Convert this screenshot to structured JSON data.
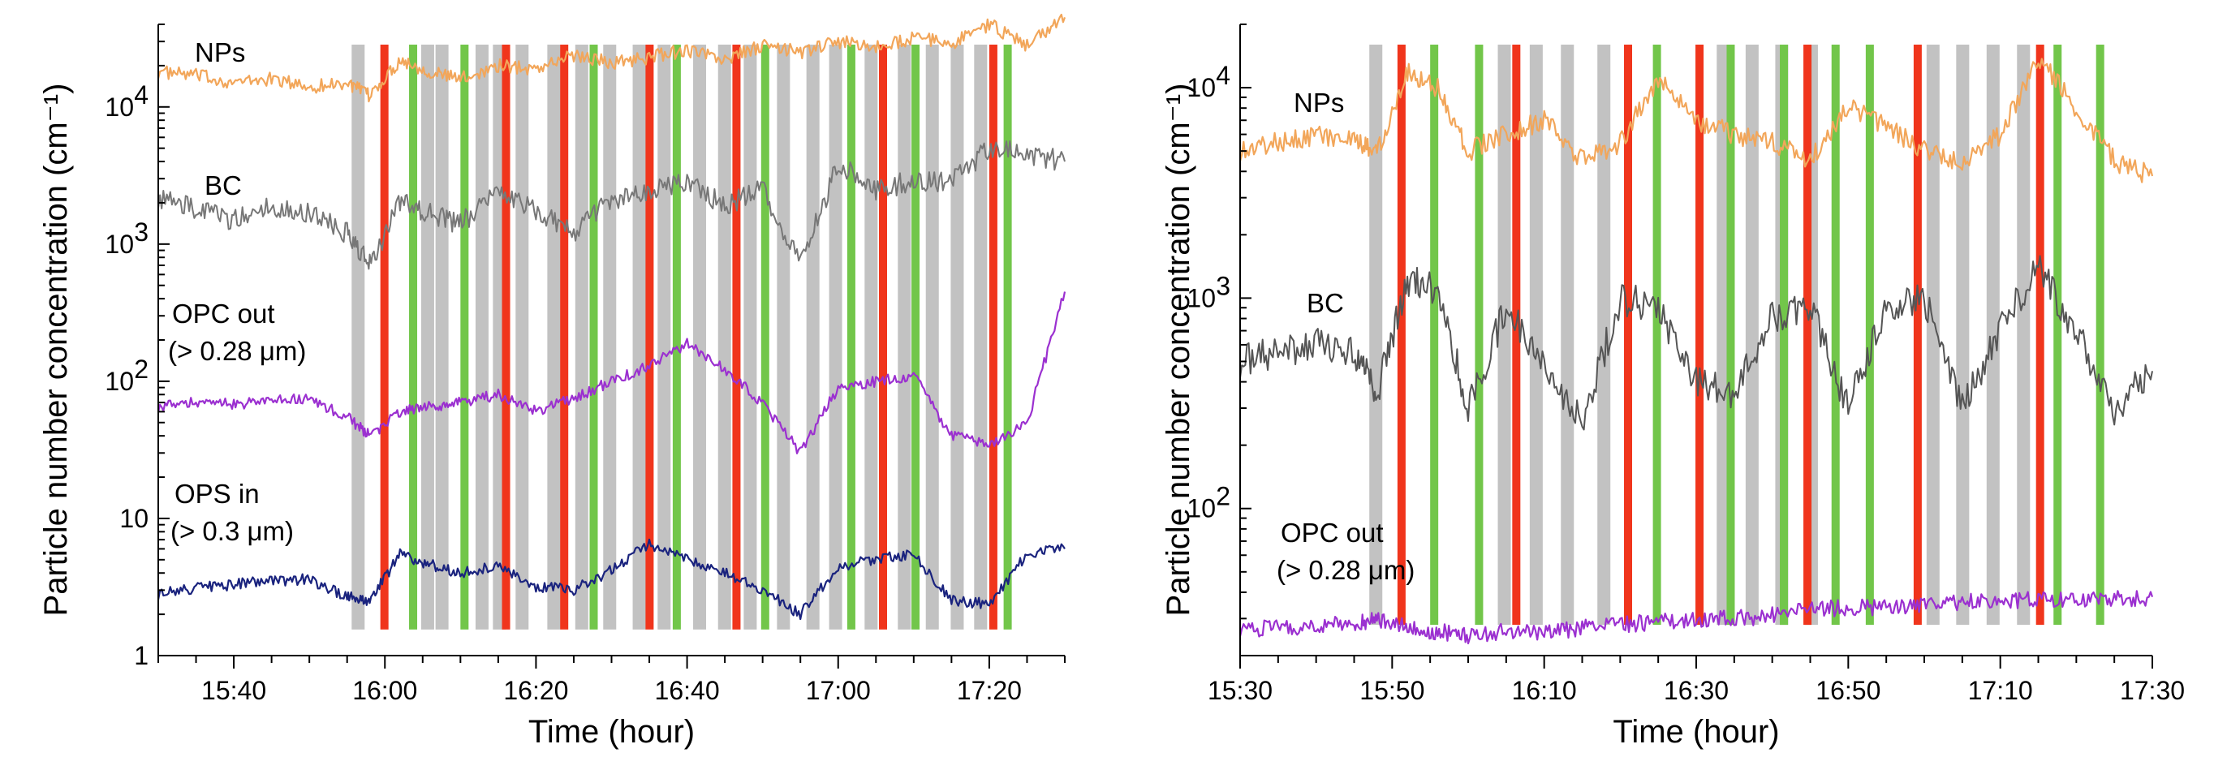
{
  "chart_data": [
    {
      "type": "line",
      "panel": "left",
      "y_scale": "log",
      "ylabel": "Particle number concentration (cm⁻¹)",
      "xlabel": "Time (hour)",
      "xlim_min": [
        930,
        1050
      ],
      "ylim": [
        1,
        40000
      ],
      "x_ticks": [
        {
          "label": "15:40",
          "min": 940
        },
        {
          "label": "16:00",
          "min": 960
        },
        {
          "label": "16:20",
          "min": 980
        },
        {
          "label": "16:40",
          "min": 1000
        },
        {
          "label": "17:00",
          "min": 1020
        },
        {
          "label": "17:20",
          "min": 1040
        }
      ],
      "y_ticks": [
        {
          "label": "1",
          "exp": "",
          "v": 1
        },
        {
          "label": "10",
          "exp": "",
          "v": 10
        },
        {
          "label": "10",
          "exp": "2",
          "v": 100
        },
        {
          "label": "10",
          "exp": "3",
          "v": 1000
        },
        {
          "label": "10",
          "exp": "4",
          "v": 10000
        }
      ],
      "gray_bands_min": [
        955.6,
        964.8,
        966.7,
        972.0,
        974.3,
        977.3,
        981.5,
        985.2,
        988.9,
        992.8,
        996.1,
        1000.8,
        1004.1,
        1007.5,
        1011.9,
        1015.8,
        1018.8,
        1023.5,
        1027.9,
        1031.6,
        1034.9,
        1038.0
      ],
      "red_bars_min": [
        959.4,
        975.5,
        983.2,
        994.5,
        1006.0,
        1025.4,
        1040.0
      ],
      "green_bars_min": [
        963.2,
        970.0,
        987.1,
        998.1,
        1009.8,
        1021.2,
        1029.7,
        1041.9
      ],
      "series": [
        {
          "name": "NPs",
          "label": "NPs",
          "color": "#f2a65a",
          "x_min": [
            930,
            935,
            940,
            945,
            950,
            955,
            958,
            962,
            966,
            970,
            975,
            980,
            985,
            990,
            995,
            1000,
            1005,
            1010,
            1015,
            1020,
            1025,
            1030,
            1035,
            1040,
            1045,
            1050
          ],
          "values": [
            18000,
            17000,
            15000,
            16000,
            14000,
            15000,
            12000,
            22000,
            18000,
            16000,
            20000,
            19000,
            24000,
            21000,
            23000,
            26000,
            22000,
            28000,
            25000,
            30000,
            27000,
            32000,
            29000,
            40000,
            28000,
            45000
          ]
        },
        {
          "name": "BC",
          "label": "BC",
          "color": "#777777",
          "x_min": [
            930,
            935,
            940,
            945,
            950,
            955,
            958,
            962,
            966,
            970,
            975,
            980,
            985,
            990,
            995,
            1000,
            1005,
            1010,
            1015,
            1020,
            1025,
            1030,
            1035,
            1040,
            1045,
            1050
          ],
          "values": [
            2200,
            1800,
            1500,
            1900,
            1700,
            1200,
            700,
            2000,
            1700,
            1400,
            2500,
            1800,
            1200,
            2100,
            2500,
            2800,
            1900,
            2600,
            700,
            3800,
            2500,
            2900,
            2800,
            5000,
            4500,
            4000
          ]
        },
        {
          "name": "OPC out (> 0.28 μm)",
          "label_line1": "OPC out",
          "label_line2": "(> 0.28 μm)",
          "color": "#9b30d0",
          "x_min": [
            930,
            935,
            940,
            945,
            950,
            955,
            958,
            962,
            966,
            970,
            975,
            980,
            985,
            990,
            995,
            1000,
            1005,
            1010,
            1015,
            1020,
            1025,
            1030,
            1035,
            1040,
            1045,
            1050
          ],
          "values": [
            65,
            70,
            68,
            72,
            75,
            55,
            40,
            60,
            65,
            70,
            80,
            60,
            75,
            100,
            130,
            190,
            120,
            70,
            30,
            90,
            100,
            110,
            40,
            35,
            50,
            450
          ]
        },
        {
          "name": "OPS in (> 0.3 μm)",
          "label_line1": "OPS in",
          "label_line2": "(> 0.3 μm)",
          "color": "#1a237e",
          "x_min": [
            930,
            935,
            940,
            945,
            950,
            955,
            958,
            962,
            966,
            970,
            975,
            980,
            985,
            990,
            995,
            1000,
            1005,
            1010,
            1015,
            1020,
            1025,
            1030,
            1035,
            1040,
            1045,
            1050
          ],
          "values": [
            2.8,
            3.1,
            3.3,
            3.5,
            3.6,
            2.7,
            2.5,
            5.5,
            4.6,
            4.0,
            4.5,
            3.2,
            3.0,
            4.2,
            6.5,
            5.0,
            4.0,
            3.0,
            2.0,
            4.5,
            5.0,
            5.5,
            2.5,
            2.4,
            5.5,
            6.0
          ]
        }
      ]
    },
    {
      "type": "line",
      "panel": "right",
      "y_scale": "log",
      "ylabel": "Particle number concentration (cm⁻¹)",
      "xlabel": "Time (hour)",
      "xlim_min": [
        930,
        1050
      ],
      "ylim": [
        20,
        20000
      ],
      "x_ticks": [
        {
          "label": "15:30",
          "min": 930
        },
        {
          "label": "15:50",
          "min": 950
        },
        {
          "label": "16:10",
          "min": 970
        },
        {
          "label": "16:30",
          "min": 990
        },
        {
          "label": "16:50",
          "min": 1010
        },
        {
          "label": "17:10",
          "min": 1030
        },
        {
          "label": "17:30",
          "min": 1050
        }
      ],
      "y_ticks": [
        {
          "label": "10",
          "exp": "2",
          "v": 100
        },
        {
          "label": "10",
          "exp": "3",
          "v": 1000
        },
        {
          "label": "10",
          "exp": "4",
          "v": 10000
        }
      ],
      "gray_bands_min": [
        947.0,
        963.9,
        968.1,
        972.2,
        977.0,
        992.7,
        996.5,
        1000.4,
        1004.3,
        1020.3,
        1024.2,
        1028.2,
        1032.2
      ],
      "red_bars_min": [
        950.7,
        965.8,
        980.5,
        989.9,
        1004.1,
        1018.6,
        1034.7
      ],
      "green_bars_min": [
        955.0,
        960.9,
        984.3,
        994.0,
        1001.0,
        1007.8,
        1012.3,
        1037.0,
        1042.6
      ],
      "series": [
        {
          "name": "NPs",
          "label": "NPs",
          "color": "#f2a65a",
          "x_min": [
            930,
            935,
            940,
            945,
            948,
            952,
            956,
            960,
            965,
            970,
            975,
            980,
            985,
            990,
            995,
            1000,
            1005,
            1010,
            1015,
            1020,
            1025,
            1030,
            1035,
            1040,
            1045,
            1050
          ],
          "values": [
            5000,
            5500,
            6000,
            5500,
            5000,
            12000,
            10000,
            5000,
            6000,
            7000,
            4500,
            5500,
            11000,
            7000,
            6000,
            5500,
            4500,
            8000,
            6500,
            5000,
            4500,
            6000,
            14000,
            8000,
            4500,
            3800
          ]
        },
        {
          "name": "BC",
          "label": "BC",
          "color": "#555555",
          "x_min": [
            930,
            935,
            940,
            945,
            948,
            952,
            956,
            960,
            965,
            970,
            975,
            980,
            985,
            990,
            995,
            1000,
            1005,
            1010,
            1015,
            1020,
            1025,
            1030,
            1035,
            1040,
            1045,
            1050
          ],
          "values": [
            500,
            550,
            600,
            550,
            350,
            1200,
            1100,
            300,
            900,
            500,
            250,
            1000,
            900,
            400,
            350,
            800,
            950,
            300,
            900,
            1000,
            300,
            700,
            1400,
            700,
            300,
            450
          ]
        },
        {
          "name": "OPC out (> 0.28 μm)",
          "label_line1": "OPC out",
          "label_line2": "(> 0.28 μm)",
          "color": "#9b30d0",
          "x_min": [
            930,
            935,
            940,
            945,
            948,
            952,
            956,
            960,
            965,
            970,
            975,
            980,
            985,
            990,
            995,
            1000,
            1005,
            1010,
            1015,
            1020,
            1025,
            1030,
            1035,
            1040,
            1045,
            1050
          ],
          "values": [
            27,
            27,
            28,
            28,
            30,
            27,
            26,
            25,
            26,
            26,
            27,
            28,
            29,
            30,
            30,
            31,
            33,
            34,
            34,
            35,
            36,
            36,
            37,
            37,
            37,
            38
          ]
        }
      ]
    }
  ]
}
